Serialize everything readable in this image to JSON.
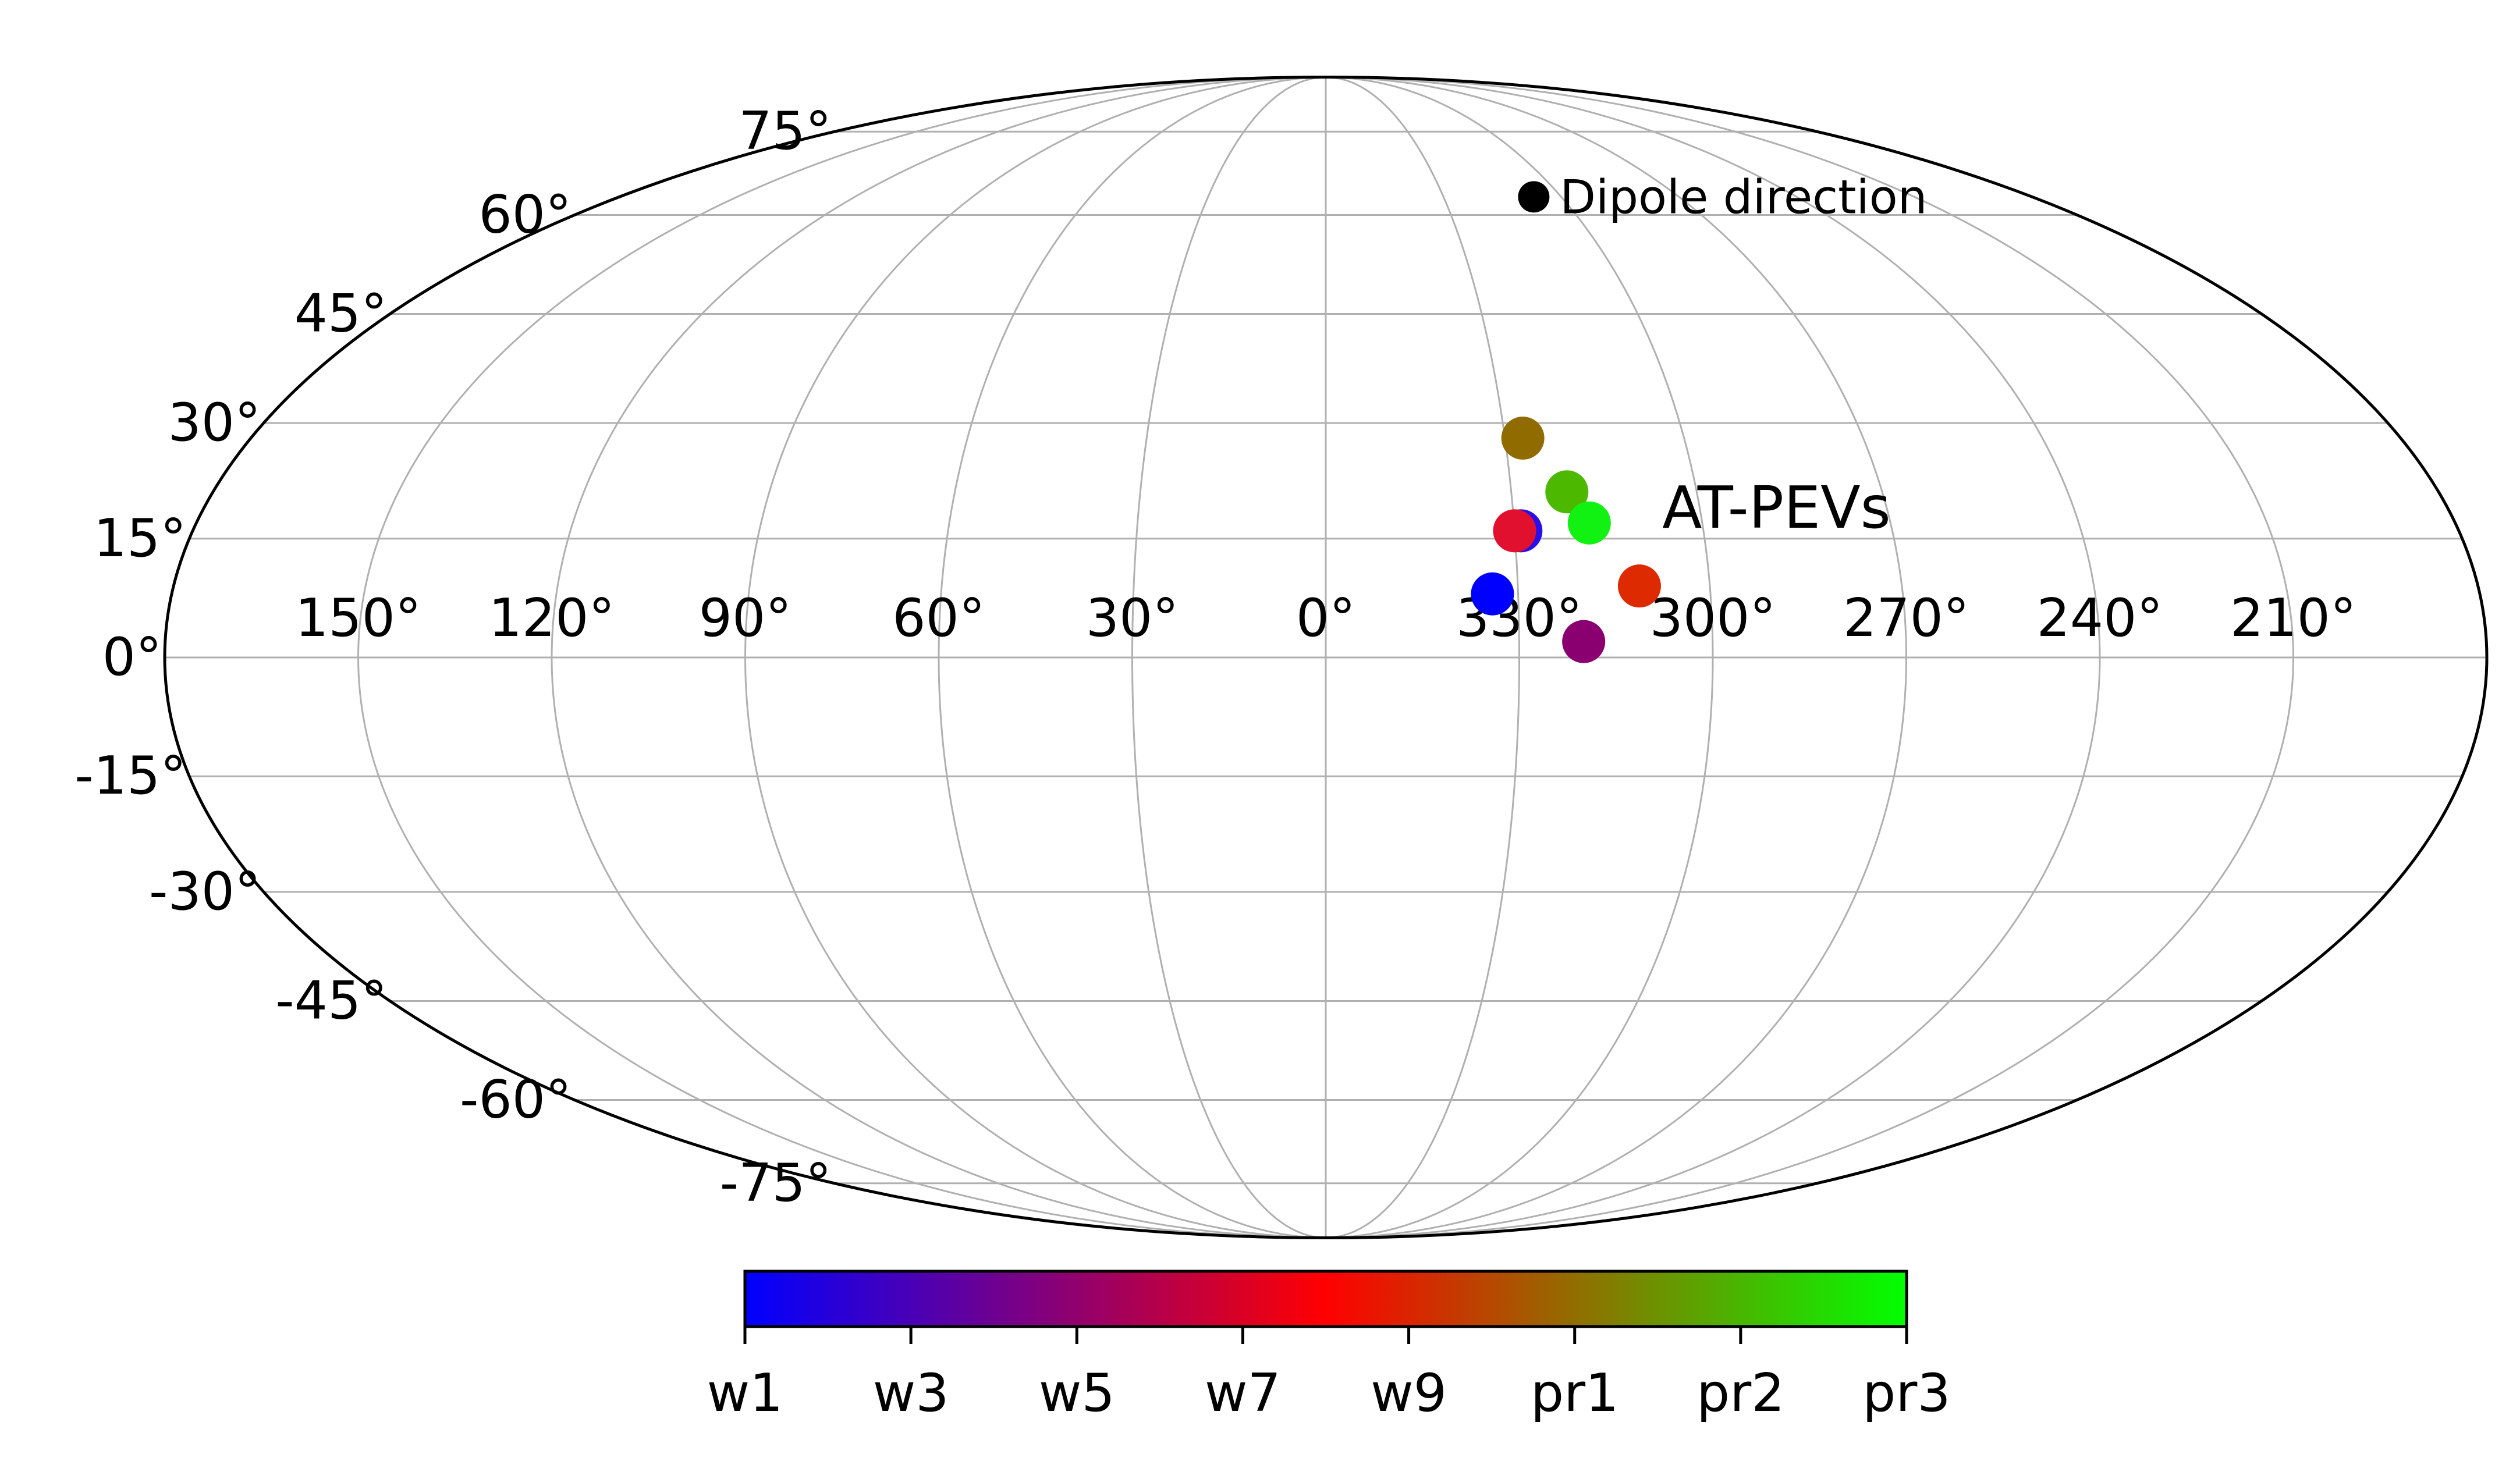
{
  "chart_data": {
    "type": "scatter",
    "projection": "mollweide",
    "central_longitude": 0,
    "longitude_direction": "increasing to the left",
    "grid": true,
    "lon_gridlines": [
      180,
      150,
      120,
      90,
      60,
      30,
      0,
      330,
      300,
      270,
      240,
      210
    ],
    "lat_gridlines": [
      -75,
      -60,
      -45,
      -30,
      -15,
      0,
      15,
      30,
      45,
      60,
      75
    ],
    "lon_tick_labels": [
      {
        "lon": 150,
        "label": "150°"
      },
      {
        "lon": 120,
        "label": "120°"
      },
      {
        "lon": 90,
        "label": "90°"
      },
      {
        "lon": 60,
        "label": "60°"
      },
      {
        "lon": 30,
        "label": "30°"
      },
      {
        "lon": 0,
        "label": "0°"
      },
      {
        "lon": 330,
        "label": "330°"
      },
      {
        "lon": 300,
        "label": "300°"
      },
      {
        "lon": 270,
        "label": "270°"
      },
      {
        "lon": 240,
        "label": "240°"
      },
      {
        "lon": 210,
        "label": "210°"
      }
    ],
    "lat_tick_labels": [
      {
        "lat": 75,
        "label": "75°"
      },
      {
        "lat": 60,
        "label": "60°"
      },
      {
        "lat": 45,
        "label": "45°"
      },
      {
        "lat": 30,
        "label": "30°"
      },
      {
        "lat": 15,
        "label": "15°"
      },
      {
        "lat": 0,
        "label": "0°"
      },
      {
        "lat": -15,
        "label": "-15°"
      },
      {
        "lat": -30,
        "label": "-30°"
      },
      {
        "lat": -45,
        "label": "-45°"
      },
      {
        "lat": -60,
        "label": "-60°"
      },
      {
        "lat": -75,
        "label": "-75°"
      }
    ],
    "points": [
      {
        "lon": 334,
        "lat": 8,
        "color": "#0000ff"
      },
      {
        "lon": 329,
        "lat": 16,
        "color": "#2a10e8"
      },
      {
        "lon": 330,
        "lat": 16,
        "color": "#e0102e"
      },
      {
        "lon": 320,
        "lat": 2,
        "color": "#8a0070"
      },
      {
        "lon": 311,
        "lat": 9,
        "color": "#dd2a00"
      },
      {
        "lon": 327,
        "lat": 28,
        "color": "#8f6b00"
      },
      {
        "lon": 321,
        "lat": 21,
        "color": "#4cb800"
      },
      {
        "lon": 318,
        "lat": 17,
        "color": "#12f212"
      }
    ],
    "dipole": {
      "lon": 307,
      "lat": 63,
      "color": "#000000",
      "label": "Dipole direction"
    },
    "annotation": {
      "text": "AT-PEVs",
      "lon": 306,
      "lat": 19
    },
    "colorbar": {
      "ticks": [
        "w1",
        "w3",
        "w5",
        "w7",
        "w9",
        "pr1",
        "pr2",
        "pr3"
      ],
      "colors": [
        "#0000ff",
        "#ff0000",
        "#00ff00"
      ]
    }
  }
}
